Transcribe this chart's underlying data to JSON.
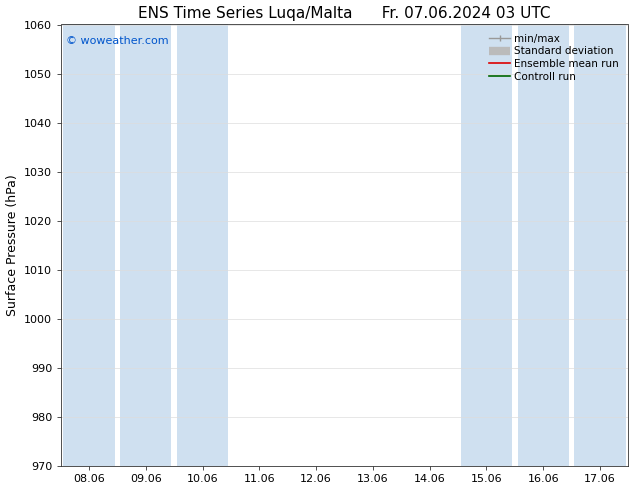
{
  "title": "ENS Time Series Luqa/Malta      Fr. 07.06.2024 03 UTC",
  "ylabel": "Surface Pressure (hPa)",
  "ylim": [
    970,
    1060
  ],
  "yticks": [
    970,
    980,
    990,
    1000,
    1010,
    1020,
    1030,
    1040,
    1050,
    1060
  ],
  "xlabels": [
    "08.06",
    "09.06",
    "10.06",
    "11.06",
    "12.06",
    "13.06",
    "14.06",
    "15.06",
    "16.06",
    "17.06"
  ],
  "x_values": [
    0,
    1,
    2,
    3,
    4,
    5,
    6,
    7,
    8,
    9
  ],
  "shaded_bands": [
    0,
    1,
    2,
    7,
    8,
    9
  ],
  "band_color": "#cfe0f0",
  "background_color": "#ffffff",
  "plot_bg_color": "#ffffff",
  "copyright_text": "© woweather.com",
  "copyright_color": "#0055cc",
  "legend_entries": [
    "min/max",
    "Standard deviation",
    "Ensemble mean run",
    "Controll run"
  ],
  "legend_line_colors": [
    "#999999",
    "#bbbbbb",
    "#dd0000",
    "#006600"
  ],
  "title_fontsize": 11,
  "axis_fontsize": 9,
  "tick_fontsize": 8,
  "legend_fontsize": 7.5
}
